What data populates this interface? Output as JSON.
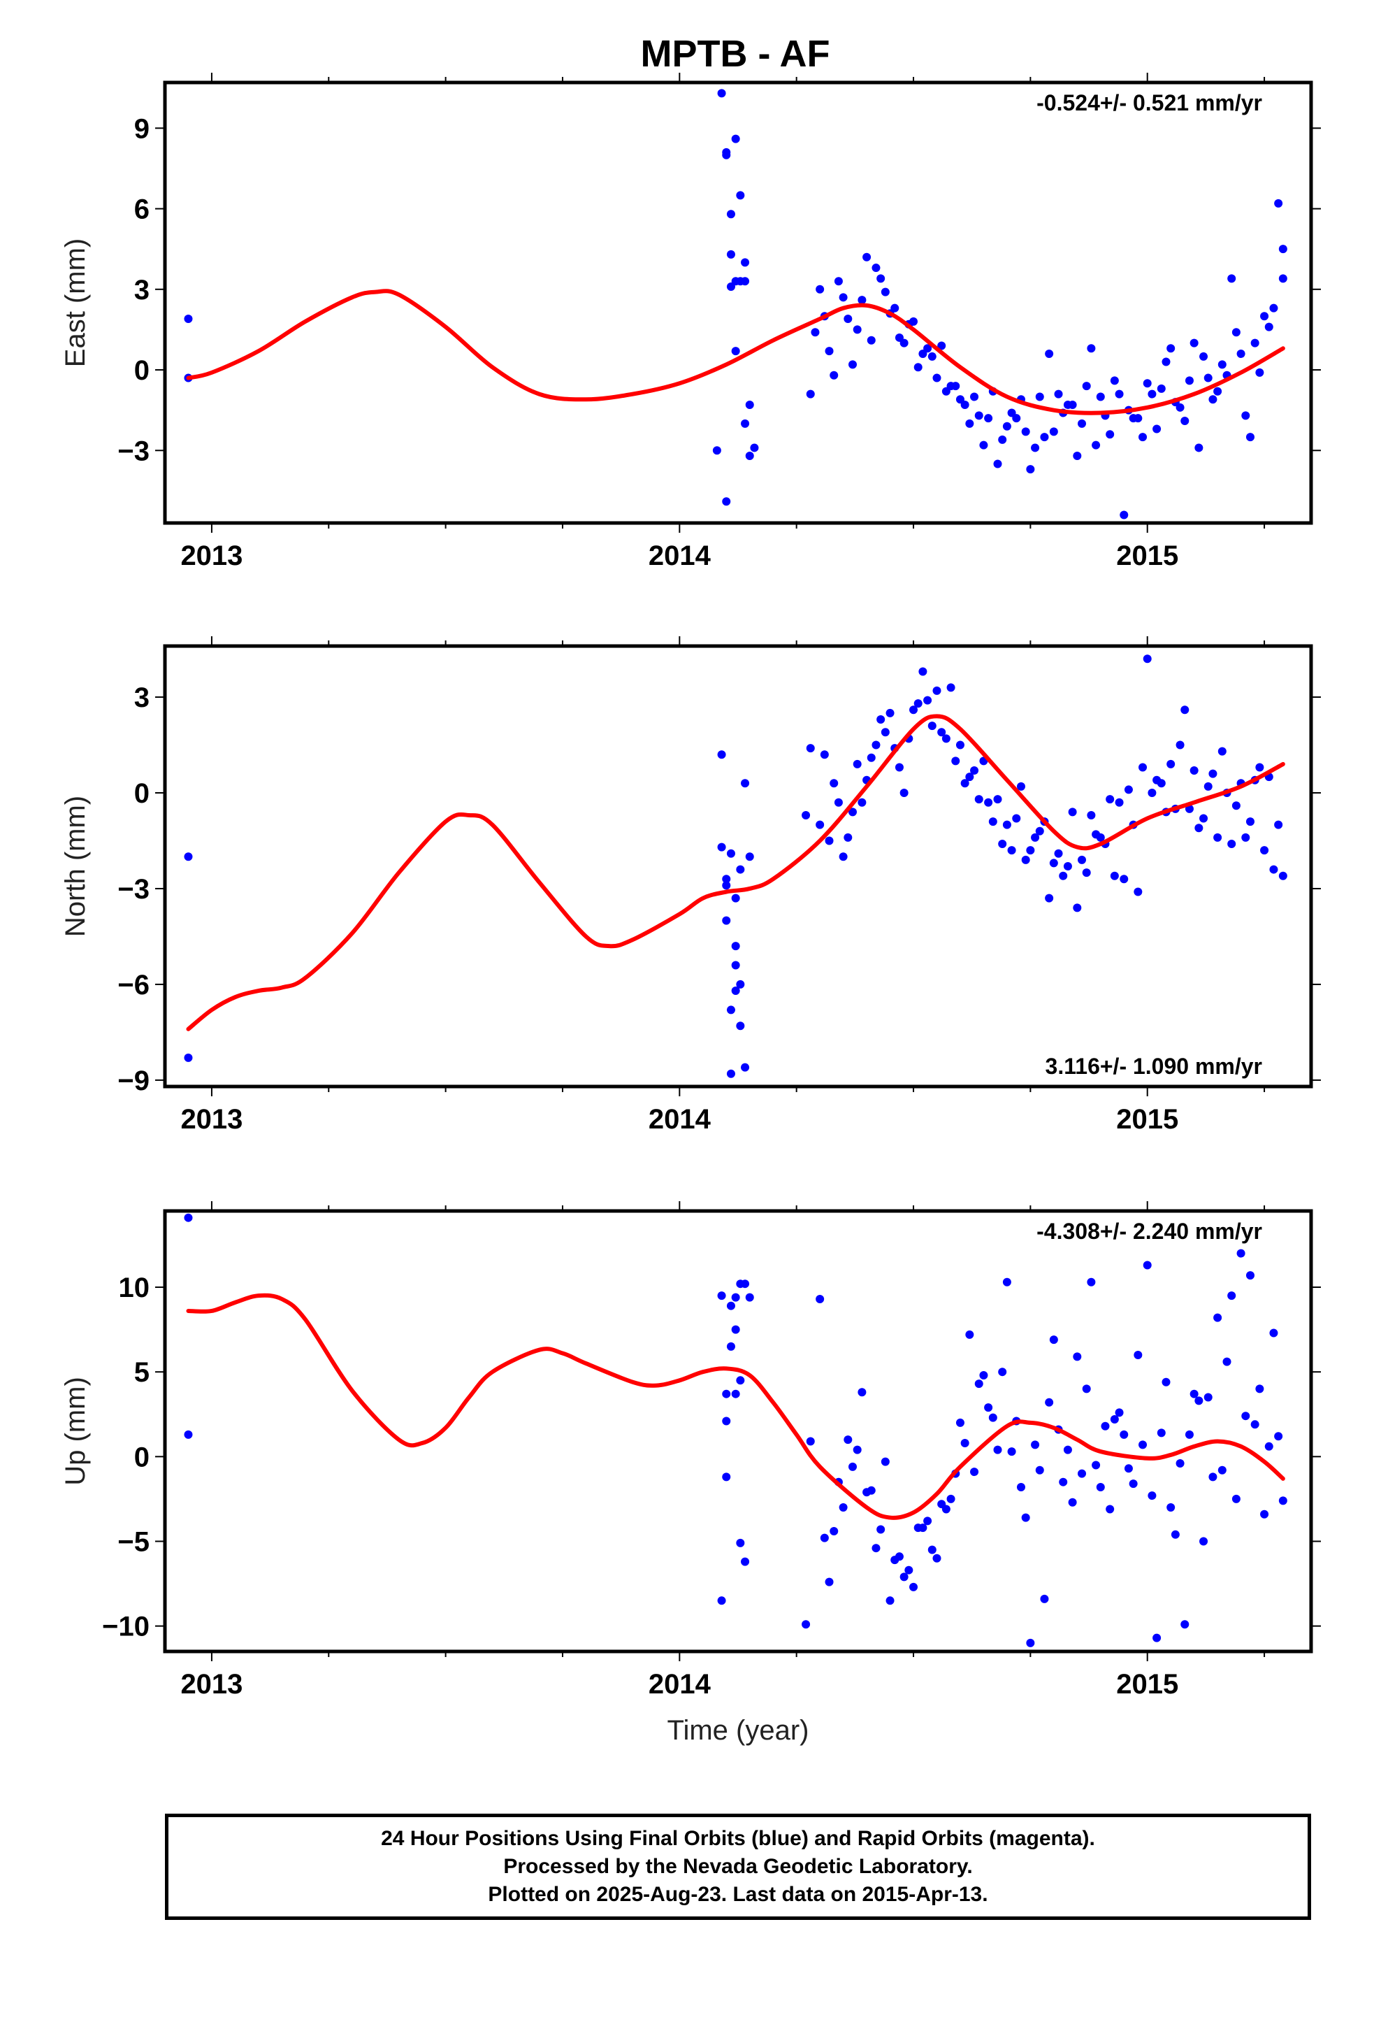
{
  "title": "MPTB - AF",
  "xlabel": "Time (year)",
  "footer": [
    "24 Hour Positions Using Final Orbits (blue) and Rapid Orbits (magenta).",
    "Processed by the Nevada Geodetic Laboratory.",
    "Plotted on 2025-Aug-23. Last data on 2015-Apr-13."
  ],
  "colors": {
    "data": "#0000ff",
    "model": "#ff0000",
    "frame": "#000000"
  },
  "chart_data": [
    {
      "type": "scatter",
      "ylabel": "East (mm)",
      "rate_text": "-0.524+/- 0.521 mm/yr",
      "rate_placement": "top-right",
      "xlim": [
        2012.9,
        2015.35
      ],
      "ylim": [
        -5.7,
        10.7
      ],
      "x_ticks": [
        2013,
        2014,
        2015
      ],
      "y_ticks": [
        -3,
        0,
        3,
        6,
        9
      ],
      "y_tick_labels": [
        "−3",
        "0",
        "3",
        "6",
        "9"
      ],
      "points": {
        "x": [
          2012.95,
          2012.95,
          2014.09,
          2014.1,
          2014.1,
          2014.11,
          2014.11,
          2014.12,
          2014.12,
          2014.13,
          2014.13,
          2014.14,
          2014.14,
          2014.15,
          2014.15,
          2014.11,
          2014.12,
          2014.14,
          2014.16,
          2014.1,
          2014.08,
          2014.28,
          2014.3,
          2014.32,
          2014.35,
          2014.38,
          2014.4,
          2014.42,
          2014.45,
          2014.48,
          2014.5,
          2014.52,
          2014.55,
          2014.58,
          2014.6,
          2014.62,
          2014.65,
          2014.68,
          2014.7,
          2014.72,
          2014.75,
          2014.78,
          2014.8,
          2014.82,
          2014.85,
          2014.88,
          2014.9,
          2014.92,
          2014.95,
          2014.98,
          2015.0,
          2015.02,
          2015.05,
          2015.08,
          2015.1,
          2015.12,
          2015.15,
          2015.18,
          2015.2,
          2015.22,
          2015.25,
          2015.27,
          2015.28,
          2015.29,
          2014.29,
          2014.31,
          2014.34,
          2014.36,
          2014.39,
          2014.41,
          2014.43,
          2014.46,
          2014.49,
          2014.51,
          2014.54,
          2014.56,
          2014.59,
          2014.61,
          2014.64,
          2014.67,
          2014.69,
          2014.71,
          2014.74,
          2014.77,
          2014.79,
          2014.81,
          2014.84,
          2014.87,
          2014.89,
          2014.91,
          2014.94,
          2014.97,
          2014.99,
          2015.01,
          2015.04,
          2015.07,
          2015.09,
          2015.11,
          2015.14,
          2015.17,
          2015.19,
          2015.21,
          2015.24,
          2015.26,
          2014.33,
          2014.37,
          2014.44,
          2014.47,
          2014.53,
          2014.57,
          2014.63,
          2014.66,
          2014.73,
          2014.76,
          2014.83,
          2014.86,
          2014.93,
          2014.96,
          2015.03,
          2015.06,
          2015.13,
          2015.16,
          2015.23,
          2015.29
        ],
        "y": [
          1.9,
          -0.3,
          10.3,
          8.0,
          8.1,
          3.1,
          5.8,
          3.3,
          8.6,
          3.3,
          6.5,
          4.0,
          3.3,
          -3.2,
          -1.3,
          4.3,
          0.7,
          -2.0,
          -2.9,
          -4.9,
          -3.0,
          -0.9,
          3.0,
          0.7,
          2.7,
          1.5,
          4.2,
          3.8,
          2.1,
          1.0,
          1.8,
          0.6,
          -0.3,
          -0.6,
          -1.1,
          -2.0,
          -2.8,
          -3.5,
          -2.1,
          -1.8,
          -3.7,
          -2.5,
          -2.3,
          -1.6,
          -3.2,
          0.8,
          -1.0,
          -2.4,
          -5.4,
          -1.8,
          -0.5,
          -2.2,
          0.8,
          -1.9,
          1.0,
          0.5,
          -0.8,
          3.4,
          0.6,
          -2.5,
          2.0,
          2.3,
          6.2,
          3.4,
          1.4,
          2.0,
          3.3,
          1.9,
          2.6,
          1.1,
          3.4,
          2.3,
          1.7,
          0.1,
          0.5,
          0.9,
          -0.6,
          -1.3,
          -1.7,
          -0.8,
          -2.6,
          -1.6,
          -2.3,
          -1.0,
          0.6,
          -0.9,
          -1.3,
          -0.6,
          -2.8,
          -1.7,
          -0.9,
          -1.8,
          -2.5,
          -0.9,
          0.3,
          -1.4,
          -0.4,
          -2.9,
          -1.1,
          -0.2,
          1.4,
          -1.7,
          -0.1,
          1.6,
          -0.2,
          0.2,
          2.9,
          1.2,
          0.8,
          -0.8,
          -1.0,
          -1.8,
          -1.1,
          -2.9,
          -1.3,
          -2.0,
          -0.4,
          -1.5,
          -0.7,
          -1.2,
          -0.3,
          0.2,
          1.0,
          4.5
        ]
      },
      "model": {
        "x": [
          2012.95,
          2013.0,
          2013.1,
          2013.2,
          2013.3,
          2013.35,
          2013.4,
          2013.5,
          2013.6,
          2013.7,
          2013.8,
          2013.9,
          2014.0,
          2014.1,
          2014.2,
          2014.3,
          2014.35,
          2014.4,
          2014.45,
          2014.5,
          2014.6,
          2014.7,
          2014.8,
          2014.9,
          2015.0,
          2015.1,
          2015.2,
          2015.29
        ],
        "y": [
          -0.3,
          -0.1,
          0.7,
          1.8,
          2.7,
          2.9,
          2.8,
          1.6,
          0.1,
          -0.9,
          -1.1,
          -0.9,
          -0.5,
          0.2,
          1.1,
          1.9,
          2.3,
          2.4,
          2.1,
          1.5,
          0.1,
          -1.0,
          -1.5,
          -1.6,
          -1.4,
          -0.9,
          -0.1,
          0.8
        ]
      }
    },
    {
      "type": "scatter",
      "ylabel": "North (mm)",
      "rate_text": "3.116+/- 1.090 mm/yr",
      "rate_placement": "bottom-right",
      "xlim": [
        2012.9,
        2015.35
      ],
      "ylim": [
        -9.2,
        4.6
      ],
      "x_ticks": [
        2013,
        2014,
        2015
      ],
      "y_ticks": [
        -9,
        -6,
        -3,
        0,
        3
      ],
      "y_tick_labels": [
        "−9",
        "−6",
        "−3",
        "0",
        "3"
      ],
      "points": {
        "x": [
          2012.95,
          2012.95,
          2014.09,
          2014.09,
          2014.1,
          2014.1,
          2014.11,
          2014.11,
          2014.11,
          2014.12,
          2014.12,
          2014.12,
          2014.13,
          2014.13,
          2014.14,
          2014.14,
          2014.13,
          2014.12,
          2014.15,
          2014.1,
          2014.27,
          2014.3,
          2014.32,
          2014.35,
          2014.38,
          2014.4,
          2014.42,
          2014.45,
          2014.48,
          2014.5,
          2014.52,
          2014.55,
          2014.58,
          2014.6,
          2014.62,
          2014.65,
          2014.68,
          2014.7,
          2014.72,
          2014.75,
          2014.78,
          2014.8,
          2014.82,
          2014.85,
          2014.88,
          2014.9,
          2014.92,
          2014.95,
          2014.98,
          2015.0,
          2015.02,
          2015.05,
          2015.08,
          2015.1,
          2015.12,
          2015.15,
          2015.18,
          2015.2,
          2015.22,
          2015.25,
          2015.27,
          2015.29,
          2014.28,
          2014.31,
          2014.34,
          2014.36,
          2014.39,
          2014.41,
          2014.43,
          2014.46,
          2014.49,
          2014.51,
          2014.54,
          2014.56,
          2014.59,
          2014.61,
          2014.64,
          2014.67,
          2014.69,
          2014.71,
          2014.74,
          2014.77,
          2014.79,
          2014.81,
          2014.84,
          2014.87,
          2014.89,
          2014.91,
          2014.94,
          2014.97,
          2014.99,
          2015.01,
          2015.04,
          2015.07,
          2015.09,
          2015.11,
          2015.14,
          2015.17,
          2015.19,
          2015.21,
          2015.24,
          2015.26,
          2015.28,
          2014.33,
          2014.37,
          2014.44,
          2014.47,
          2014.53,
          2014.57,
          2014.63,
          2014.66,
          2014.73,
          2014.76,
          2014.83,
          2014.86,
          2014.93,
          2014.96,
          2015.03,
          2015.06,
          2015.13,
          2015.16,
          2015.23
        ],
        "y": [
          -2.0,
          -8.3,
          -1.7,
          1.2,
          -2.9,
          -4.0,
          -1.9,
          -6.8,
          -8.8,
          -5.4,
          -6.2,
          -3.3,
          -6.0,
          -7.3,
          -8.6,
          0.3,
          -2.4,
          -4.8,
          -2.0,
          -2.7,
          -0.7,
          -1.0,
          -1.5,
          -2.0,
          0.9,
          0.4,
          1.5,
          2.5,
          0.0,
          2.6,
          3.8,
          3.2,
          3.3,
          1.5,
          0.5,
          1.0,
          -0.2,
          -1.0,
          -0.8,
          -1.8,
          -0.9,
          -2.2,
          -2.6,
          -3.6,
          -0.7,
          -1.4,
          -0.2,
          -2.7,
          -3.1,
          4.2,
          0.4,
          0.9,
          2.6,
          0.7,
          -0.8,
          -1.4,
          -1.6,
          0.3,
          -0.9,
          -1.8,
          -2.4,
          -2.6,
          1.4,
          1.2,
          -0.3,
          -1.4,
          -0.3,
          1.1,
          2.3,
          1.4,
          1.7,
          2.8,
          2.1,
          1.9,
          1.0,
          0.3,
          -0.2,
          -0.9,
          -1.6,
          -1.8,
          -2.1,
          -1.2,
          -3.3,
          -1.9,
          -0.6,
          -2.5,
          -1.3,
          -1.6,
          -0.3,
          -1.0,
          0.8,
          0.0,
          -0.6,
          1.5,
          -0.5,
          -1.1,
          0.6,
          0.0,
          -0.4,
          -1.4,
          0.8,
          0.5,
          -1.0,
          0.3,
          -0.6,
          1.9,
          0.8,
          2.9,
          1.7,
          0.7,
          -0.3,
          0.2,
          -1.4,
          -2.3,
          -2.1,
          -2.6,
          0.1,
          0.3,
          -0.5,
          0.2,
          1.3,
          0.4
        ]
      },
      "model": {
        "x": [
          2012.95,
          2013.0,
          2013.05,
          2013.1,
          2013.15,
          2013.2,
          2013.3,
          2013.4,
          2013.5,
          2013.55,
          2013.6,
          2013.7,
          2013.8,
          2013.85,
          2013.9,
          2014.0,
          2014.05,
          2014.1,
          2014.15,
          2014.2,
          2014.3,
          2014.4,
          2014.5,
          2014.55,
          2014.6,
          2014.7,
          2014.8,
          2014.85,
          2014.9,
          2015.0,
          2015.1,
          2015.2,
          2015.29
        ],
        "y": [
          -7.4,
          -6.8,
          -6.4,
          -6.2,
          -6.1,
          -5.8,
          -4.4,
          -2.5,
          -0.9,
          -0.7,
          -1.0,
          -2.8,
          -4.5,
          -4.8,
          -4.6,
          -3.8,
          -3.3,
          -3.1,
          -3.0,
          -2.7,
          -1.5,
          0.2,
          2.0,
          2.4,
          2.0,
          0.4,
          -1.2,
          -1.7,
          -1.6,
          -0.8,
          -0.3,
          0.2,
          0.9
        ]
      }
    },
    {
      "type": "scatter",
      "ylabel": "Up (mm)",
      "rate_text": "-4.308+/- 2.240 mm/yr",
      "rate_placement": "top-right",
      "xlim": [
        2012.9,
        2015.35
      ],
      "ylim": [
        -11.5,
        14.5
      ],
      "x_ticks": [
        2013,
        2014,
        2015
      ],
      "y_ticks": [
        -10,
        -5,
        0,
        5,
        10
      ],
      "y_tick_labels": [
        "−10",
        "−5",
        "0",
        "5",
        "10"
      ],
      "points": {
        "x": [
          2012.95,
          2012.95,
          2014.09,
          2014.09,
          2014.1,
          2014.1,
          2014.11,
          2014.11,
          2014.12,
          2014.12,
          2014.13,
          2014.13,
          2014.14,
          2014.14,
          2014.13,
          2014.12,
          2014.1,
          2014.15,
          2014.27,
          2014.3,
          2014.32,
          2014.35,
          2014.38,
          2014.4,
          2014.42,
          2014.45,
          2014.48,
          2014.5,
          2014.52,
          2014.55,
          2014.58,
          2014.6,
          2014.62,
          2014.65,
          2014.68,
          2014.7,
          2014.72,
          2014.75,
          2014.78,
          2014.8,
          2014.82,
          2014.85,
          2014.88,
          2014.9,
          2014.92,
          2014.95,
          2014.98,
          2015.0,
          2015.02,
          2015.05,
          2015.08,
          2015.1,
          2015.12,
          2015.15,
          2015.18,
          2015.2,
          2015.22,
          2015.25,
          2015.27,
          2015.29,
          2014.28,
          2014.31,
          2014.34,
          2014.36,
          2014.39,
          2014.41,
          2014.43,
          2014.46,
          2014.49,
          2014.51,
          2014.54,
          2014.56,
          2014.59,
          2014.61,
          2014.64,
          2014.67,
          2014.69,
          2014.71,
          2014.74,
          2014.77,
          2014.79,
          2014.81,
          2014.84,
          2014.87,
          2014.89,
          2014.91,
          2014.94,
          2014.97,
          2014.99,
          2015.01,
          2015.04,
          2015.07,
          2015.09,
          2015.11,
          2015.14,
          2015.17,
          2015.19,
          2015.21,
          2015.24,
          2015.26,
          2015.28,
          2014.33,
          2014.37,
          2014.44,
          2014.47,
          2014.53,
          2014.57,
          2014.63,
          2014.66,
          2014.73,
          2014.76,
          2014.83,
          2014.86,
          2014.93,
          2014.96,
          2015.03,
          2015.06,
          2015.13,
          2015.16,
          2015.23
        ],
        "y": [
          14.1,
          1.3,
          -8.5,
          9.5,
          3.7,
          -1.2,
          8.9,
          6.5,
          9.4,
          3.7,
          10.2,
          -5.1,
          10.2,
          -6.2,
          4.5,
          7.5,
          2.1,
          9.4,
          -9.9,
          9.3,
          -7.4,
          -3.0,
          0.4,
          -2.1,
          -5.4,
          -8.5,
          -7.1,
          -7.7,
          -4.2,
          -6.0,
          -2.5,
          2.0,
          7.2,
          4.8,
          0.4,
          10.3,
          2.1,
          -11.0,
          -8.4,
          6.9,
          -1.5,
          5.9,
          10.3,
          -1.8,
          -3.1,
          1.3,
          6.0,
          11.3,
          -10.7,
          -3.0,
          -9.9,
          3.7,
          -5.0,
          8.2,
          9.5,
          12.0,
          10.7,
          -3.4,
          7.3,
          -2.6,
          0.9,
          -4.8,
          -1.5,
          1.0,
          3.8,
          -2.0,
          -4.3,
          -6.1,
          -6.7,
          -4.2,
          -5.5,
          -2.8,
          -1.0,
          0.8,
          4.3,
          2.3,
          5.0,
          0.3,
          -3.6,
          -0.8,
          3.2,
          1.6,
          -2.7,
          4.0,
          -0.5,
          1.8,
          2.6,
          -1.6,
          0.7,
          -2.3,
          4.4,
          -0.4,
          1.3,
          3.3,
          -1.2,
          5.6,
          -2.5,
          2.4,
          4.0,
          0.6,
          1.2,
          -4.4,
          -0.6,
          -0.3,
          -5.9,
          -3.8,
          -3.1,
          -0.9,
          2.9,
          -1.8,
          0.7,
          0.4,
          -1.0,
          2.2,
          -0.7,
          1.4,
          -4.6,
          3.5,
          -0.8,
          1.9
        ]
      },
      "model": {
        "x": [
          2012.95,
          2013.0,
          2013.05,
          2013.1,
          2013.15,
          2013.2,
          2013.3,
          2013.4,
          2013.45,
          2013.5,
          2013.55,
          2013.6,
          2013.7,
          2013.75,
          2013.8,
          2013.9,
          2013.95,
          2014.0,
          2014.05,
          2014.1,
          2014.15,
          2014.2,
          2014.25,
          2014.3,
          2014.4,
          2014.45,
          2014.5,
          2014.55,
          2014.6,
          2014.7,
          2014.75,
          2014.8,
          2014.85,
          2014.9,
          2015.0,
          2015.05,
          2015.1,
          2015.15,
          2015.2,
          2015.25,
          2015.29
        ],
        "y": [
          8.6,
          8.6,
          9.1,
          9.5,
          9.3,
          8.1,
          3.9,
          1.0,
          0.8,
          1.7,
          3.5,
          5.0,
          6.3,
          6.1,
          5.5,
          4.4,
          4.2,
          4.5,
          5.0,
          5.2,
          4.8,
          3.2,
          1.3,
          -0.6,
          -3.0,
          -3.6,
          -3.3,
          -2.2,
          -0.6,
          1.8,
          2.0,
          1.7,
          1.0,
          0.3,
          -0.1,
          0.1,
          0.6,
          0.9,
          0.6,
          -0.3,
          -1.3
        ]
      }
    }
  ]
}
